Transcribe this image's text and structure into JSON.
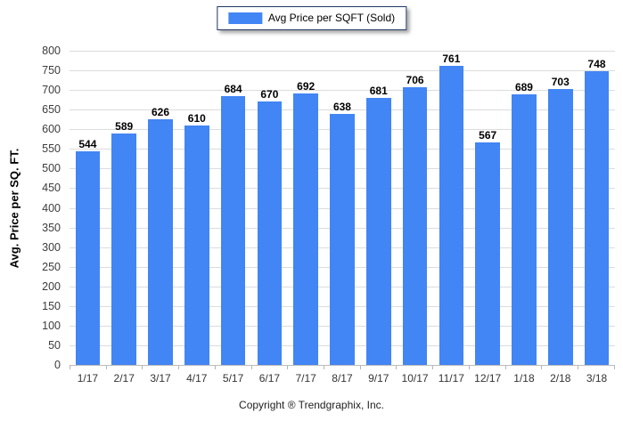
{
  "legend": {
    "label": "Avg Price per SQFT (Sold)"
  },
  "footer": {
    "text": "Copyright ® Trendgraphix, Inc."
  },
  "colors": {
    "bar": "#4285f4",
    "gridline": "#dcdcdc",
    "axis_line": "#bdbdbd",
    "legend_border": "#1f3864"
  },
  "chart_data": {
    "type": "bar",
    "title": "",
    "categories": [
      "1/17",
      "2/17",
      "3/17",
      "4/17",
      "5/17",
      "6/17",
      "7/17",
      "8/17",
      "9/17",
      "10/17",
      "11/17",
      "12/17",
      "1/18",
      "2/18",
      "3/18"
    ],
    "values": [
      544,
      589,
      626,
      610,
      684,
      670,
      692,
      638,
      681,
      706,
      761,
      567,
      689,
      703,
      748
    ],
    "xlabel": "",
    "ylabel": "Avg. Price per SQ. FT.",
    "ylim": [
      0,
      800
    ],
    "ytick_step": 50,
    "grid": true,
    "legend": [
      "Avg Price per SQFT (Sold)"
    ],
    "legend_position": "top-center",
    "bar_color": "#4285f4",
    "value_labels": "above-bars"
  }
}
